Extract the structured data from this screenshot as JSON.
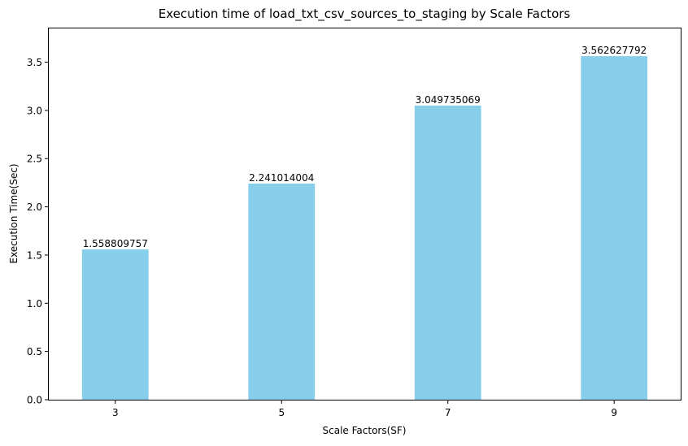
{
  "chart_data": {
    "type": "bar",
    "title": "Execution time of load_txt_csv_sources_to_staging by Scale Factors",
    "xlabel": "Scale Factors(SF)",
    "ylabel": "Execution Time(Sec)",
    "categories": [
      "3",
      "5",
      "7",
      "9"
    ],
    "values": [
      1.558809757,
      2.241014004,
      3.049735069,
      3.562627792
    ],
    "value_labels": [
      "1.558809757",
      "2.241014004",
      "3.049735069",
      "3.562627792"
    ],
    "ylim": [
      0,
      3.85
    ],
    "yticks": [
      0.0,
      0.5,
      1.0,
      1.5,
      2.0,
      2.5,
      3.0,
      3.5
    ],
    "ytick_labels": [
      "0.0",
      "0.5",
      "1.0",
      "1.5",
      "2.0",
      "2.5",
      "3.0",
      "3.5"
    ],
    "bar_color": "#87ceeb",
    "grid": false,
    "legend": "none"
  }
}
